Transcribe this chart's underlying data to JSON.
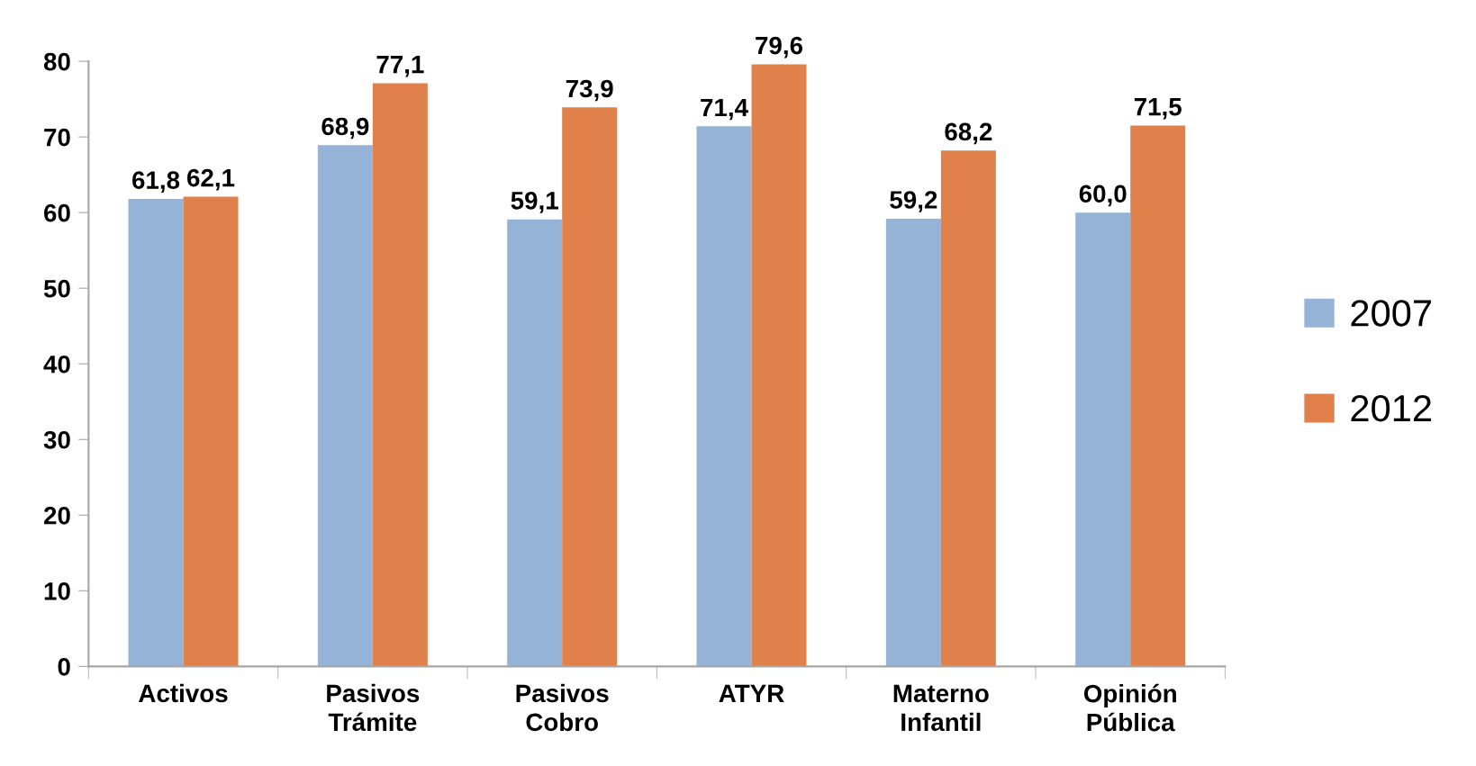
{
  "chart_data": {
    "type": "bar",
    "categories": [
      "Activos",
      "Pasivos\nTrámite",
      "Pasivos\nCobro",
      "ATYR",
      "Materno\nInfantil",
      "Opinión\nPública"
    ],
    "series": [
      {
        "name": "2007",
        "color": "#95b3d7",
        "values": [
          61.8,
          68.9,
          59.1,
          71.4,
          59.2,
          60.0
        ],
        "value_labels": [
          "61,8",
          "68,9",
          "59,1",
          "71,4",
          "59,2",
          "60,0"
        ]
      },
      {
        "name": "2012",
        "color": "#e0804a",
        "values": [
          62.1,
          77.1,
          73.9,
          79.6,
          68.2,
          71.5
        ],
        "value_labels": [
          "62,1",
          "77,1",
          "73,9",
          "79,6",
          "68,2",
          "71,5"
        ]
      }
    ],
    "ylim": [
      0,
      80
    ],
    "yticks": [
      0,
      10,
      20,
      30,
      40,
      50,
      60,
      70,
      80
    ],
    "grid": false,
    "legend": "right"
  }
}
